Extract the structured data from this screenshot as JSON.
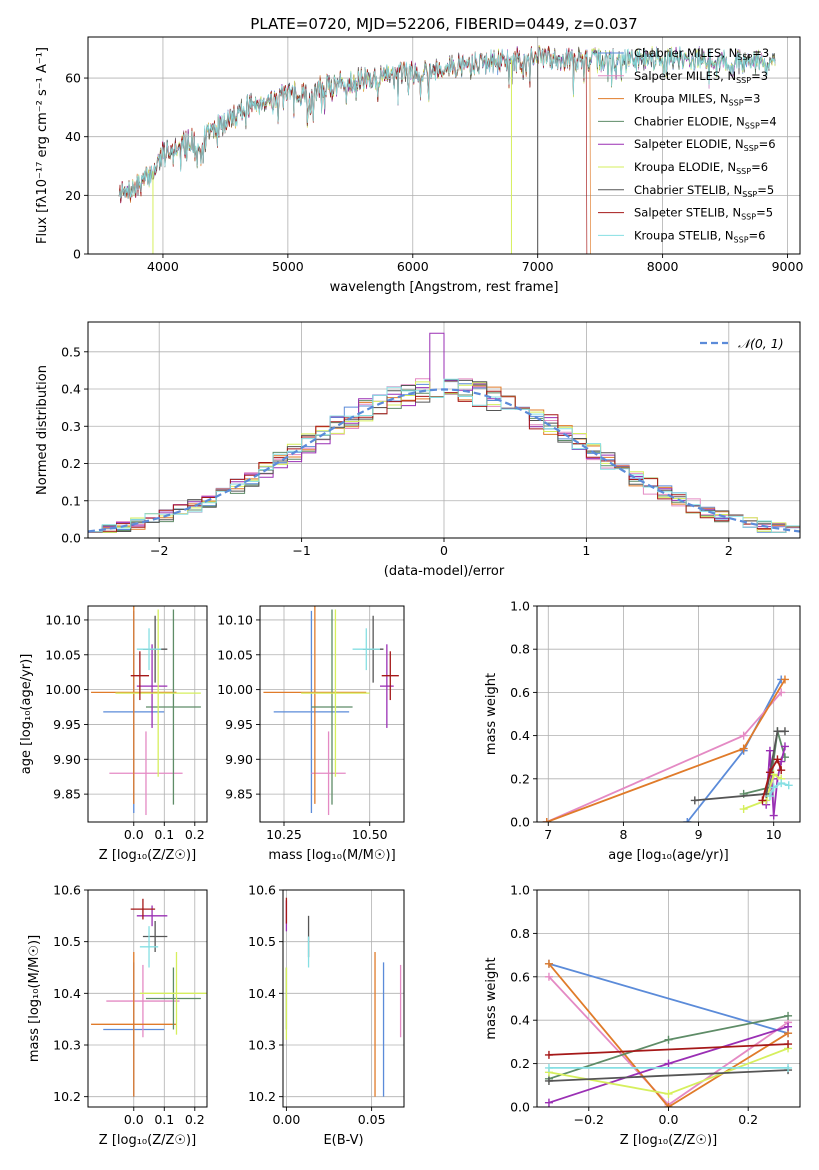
{
  "figure": {
    "title": "PLATE=0720, MJD=52206, FIBERID=0449, z=0.037"
  },
  "colors": {
    "Chabrier MILES": "#5b8bd9",
    "Salpeter MILES": "#e48ac4",
    "Kroupa MILES": "#e07b2a",
    "Chabrier ELODIE": "#5e8c67",
    "Salpeter ELODIE": "#9a2fb4",
    "Kroupa ELODIE": "#d6ef5d",
    "Chabrier STELIB": "#555555",
    "Salpeter STELIB": "#a51818",
    "Kroupa STELIB": "#86dfe3",
    "normal": "#5b8bd9"
  },
  "chart_data": [
    {
      "id": "spectrum",
      "type": "line",
      "xlabel": "wavelength [Angstrom, rest frame]",
      "ylabel": "Flux [fλ10⁻¹⁷ erg cm⁻² s⁻¹ A⁻¹]",
      "xlim": [
        3400,
        9100
      ],
      "ylim": [
        0,
        74
      ],
      "xticks": [
        4000,
        5000,
        6000,
        7000,
        8000,
        9000
      ],
      "yticks": [
        0,
        20,
        40,
        60
      ],
      "legend_position": "right",
      "series": [
        {
          "name": "Chabrier MILES, N_SSP=3"
        },
        {
          "name": "Salpeter MILES, N_SSP=3"
        },
        {
          "name": "Kroupa MILES, N_SSP=3"
        },
        {
          "name": "Chabrier ELODIE, N_SSP=4"
        },
        {
          "name": "Salpeter ELODIE, N_SSP=6"
        },
        {
          "name": "Kroupa ELODIE, N_SSP=6"
        },
        {
          "name": "Chabrier STELIB, N_SSP=5"
        },
        {
          "name": "Salpeter STELIB, N_SSP=5"
        },
        {
          "name": "Kroupa STELIB, N_SSP=6"
        }
      ],
      "continuum": [
        [
          3650,
          22
        ],
        [
          3700,
          20
        ],
        [
          3800,
          23
        ],
        [
          3900,
          27
        ],
        [
          3950,
          30
        ],
        [
          4000,
          35
        ],
        [
          4100,
          37
        ],
        [
          4300,
          40
        ],
        [
          4500,
          45
        ],
        [
          4700,
          51
        ],
        [
          5000,
          54
        ],
        [
          5500,
          59
        ],
        [
          6000,
          62
        ],
        [
          6500,
          65
        ],
        [
          7000,
          67
        ],
        [
          7500,
          66
        ],
        [
          8000,
          67
        ],
        [
          8500,
          66
        ],
        [
          8900,
          65
        ]
      ],
      "dropouts": [
        {
          "series": "Kroupa MILES",
          "x_from": 7420
        },
        {
          "series": "Salpeter STELIB",
          "x_from": 7390
        }
      ],
      "spikes_down": [
        3920,
        6790,
        7000
      ]
    },
    {
      "id": "residuals",
      "type": "histogram",
      "xlabel": "(data-model)/error",
      "ylabel": "Normed distribution",
      "xlim": [
        -2.5,
        2.5
      ],
      "ylim": [
        0,
        0.58
      ],
      "xticks": [
        -2,
        -1,
        0,
        1,
        2
      ],
      "yticks": [
        0.0,
        0.1,
        0.2,
        0.3,
        0.4,
        0.5
      ],
      "legend_position": "upper right",
      "reference_curve": {
        "name": "𝒩(0, 1)",
        "mean": 0,
        "sigma": 1
      },
      "bin_width": 0.1
    },
    {
      "id": "age_vs_Z",
      "type": "errorbar",
      "xlabel": "Z [log₁₀(Z/Z☉)]",
      "ylabel": "age  [log₁₀(age/yr)]",
      "xlim": [
        -0.15,
        0.24
      ],
      "ylim": [
        9.81,
        10.12
      ],
      "xticks": [
        0.0,
        0.1,
        0.2
      ],
      "yticks": [
        9.85,
        9.9,
        9.95,
        10.0,
        10.05,
        10.1
      ],
      "points": [
        {
          "series": "Chabrier MILES",
          "x": 0.0,
          "xerr": 0.1,
          "y": 9.968,
          "yerr": 0.145
        },
        {
          "series": "Salpeter MILES",
          "x": 0.04,
          "xerr": 0.12,
          "y": 9.88,
          "yerr": 0.06
        },
        {
          "series": "Kroupa MILES",
          "x": 0.0,
          "xerr": 0.14,
          "y": 9.996,
          "yerr": 0.16
        },
        {
          "series": "Chabrier ELODIE",
          "x": 0.13,
          "xerr": 0.09,
          "y": 9.975,
          "yerr": 0.14
        },
        {
          "series": "Salpeter ELODIE",
          "x": 0.06,
          "xerr": 0.05,
          "y": 10.005,
          "yerr": 0.06
        },
        {
          "series": "Kroupa ELODIE",
          "x": 0.08,
          "xerr": 0.14,
          "y": 9.995,
          "yerr": 0.12
        },
        {
          "series": "Chabrier STELIB",
          "x": 0.07,
          "xerr": 0.04,
          "y": 10.058,
          "yerr": 0.048
        },
        {
          "series": "Salpeter STELIB",
          "x": 0.02,
          "xerr": 0.03,
          "y": 10.02,
          "yerr": 0.035
        },
        {
          "series": "Kroupa STELIB",
          "x": 0.05,
          "xerr": 0.04,
          "y": 10.058,
          "yerr": 0.03
        }
      ]
    },
    {
      "id": "age_vs_mass",
      "type": "errorbar",
      "xlabel": "mass [log₁₀(M/M☉)]",
      "xlim": [
        10.18,
        10.6
      ],
      "ylim": [
        9.81,
        10.12
      ],
      "xticks": [
        10.25,
        10.5
      ],
      "yticks": [
        9.85,
        9.9,
        9.95,
        10.0,
        10.05,
        10.1
      ],
      "points": [
        {
          "series": "Chabrier MILES",
          "x": 10.33,
          "xerr": 0.11,
          "y": 9.968,
          "yerr": 0.145
        },
        {
          "series": "Salpeter MILES",
          "x": 10.38,
          "xerr": 0.05,
          "y": 9.88,
          "yerr": 0.06
        },
        {
          "series": "Kroupa MILES",
          "x": 10.34,
          "xerr": 0.15,
          "y": 9.996,
          "yerr": 0.16
        },
        {
          "series": "Chabrier ELODIE",
          "x": 10.39,
          "xerr": 0.06,
          "y": 9.975,
          "yerr": 0.14
        },
        {
          "series": "Salpeter ELODIE",
          "x": 10.55,
          "xerr": 0.02,
          "y": 10.005,
          "yerr": 0.06
        },
        {
          "series": "Kroupa ELODIE",
          "x": 10.4,
          "xerr": 0.1,
          "y": 9.995,
          "yerr": 0.12
        },
        {
          "series": "Chabrier STELIB",
          "x": 10.51,
          "xerr": 0.03,
          "y": 10.058,
          "yerr": 0.048
        },
        {
          "series": "Salpeter STELIB",
          "x": 10.56,
          "xerr": 0.025,
          "y": 10.02,
          "yerr": 0.035
        },
        {
          "series": "Kroupa STELIB",
          "x": 10.49,
          "xerr": 0.04,
          "y": 10.058,
          "yerr": 0.03
        }
      ]
    },
    {
      "id": "weight_vs_age",
      "type": "line",
      "xlabel": "age  [log₁₀(age/yr)]",
      "ylabel": "mass weight",
      "xlim": [
        6.85,
        10.35
      ],
      "ylim": [
        0,
        1.0
      ],
      "xticks": [
        7,
        8,
        9,
        10
      ],
      "yticks": [
        0.0,
        0.2,
        0.4,
        0.6,
        0.8,
        1.0
      ],
      "series": [
        {
          "series": "Chabrier MILES",
          "x": [
            8.85,
            9.6,
            10.1
          ],
          "y": [
            0.0,
            0.33,
            0.66
          ]
        },
        {
          "series": "Salpeter MILES",
          "x": [
            6.98,
            9.6,
            10.1
          ],
          "y": [
            0.0,
            0.4,
            0.6
          ]
        },
        {
          "series": "Kroupa MILES",
          "x": [
            6.98,
            9.6,
            10.15
          ],
          "y": [
            0.0,
            0.34,
            0.66
          ]
        },
        {
          "series": "Chabrier ELODIE",
          "x": [
            9.6,
            9.95,
            10.05,
            10.15
          ],
          "y": [
            0.13,
            0.16,
            0.42,
            0.3
          ]
        },
        {
          "series": "Salpeter ELODIE",
          "x": [
            9.9,
            9.95,
            10.0,
            10.05,
            10.1,
            10.15
          ],
          "y": [
            0.08,
            0.33,
            0.03,
            0.2,
            0.28,
            0.35
          ]
        },
        {
          "series": "Kroupa ELODIE",
          "x": [
            9.6,
            9.9,
            10.0,
            10.1
          ],
          "y": [
            0.06,
            0.1,
            0.22,
            0.2
          ]
        },
        {
          "series": "Chabrier STELIB",
          "x": [
            8.95,
            9.9,
            10.05,
            10.15
          ],
          "y": [
            0.1,
            0.13,
            0.42,
            0.42
          ]
        },
        {
          "series": "Salpeter STELIB",
          "x": [
            9.85,
            9.95,
            10.05,
            10.1
          ],
          "y": [
            0.1,
            0.23,
            0.29,
            0.24
          ]
        },
        {
          "series": "Kroupa STELIB",
          "x": [
            9.95,
            10.0,
            10.1,
            10.2
          ],
          "y": [
            0.12,
            0.16,
            0.18,
            0.17
          ]
        }
      ]
    },
    {
      "id": "mass_vs_Z",
      "type": "errorbar",
      "xlabel": "Z [log₁₀(Z/Z☉)]",
      "ylabel": "mass [log₁₀(M/M☉)]",
      "xlim": [
        -0.15,
        0.24
      ],
      "ylim": [
        10.18,
        10.6
      ],
      "xticks": [
        0.0,
        0.1,
        0.2
      ],
      "yticks": [
        10.2,
        10.3,
        10.4,
        10.5,
        10.6
      ],
      "points": [
        {
          "series": "Chabrier MILES",
          "x": 0.0,
          "xerr": 0.1,
          "y": 10.33,
          "yerr": 0.13
        },
        {
          "series": "Salpeter MILES",
          "x": 0.03,
          "xerr": 0.12,
          "y": 10.385,
          "yerr": 0.07
        },
        {
          "series": "Kroupa MILES",
          "x": 0.0,
          "xerr": 0.14,
          "y": 10.34,
          "yerr": 0.14
        },
        {
          "series": "Chabrier ELODIE",
          "x": 0.13,
          "xerr": 0.09,
          "y": 10.39,
          "yerr": 0.06
        },
        {
          "series": "Salpeter ELODIE",
          "x": 0.06,
          "xerr": 0.05,
          "y": 10.55,
          "yerr": 0.02
        },
        {
          "series": "Kroupa ELODIE",
          "x": 0.14,
          "xerr": 0.12,
          "y": 10.4,
          "yerr": 0.08
        },
        {
          "series": "Chabrier STELIB",
          "x": 0.07,
          "xerr": 0.04,
          "y": 10.51,
          "yerr": 0.03
        },
        {
          "series": "Salpeter STELIB",
          "x": 0.03,
          "xerr": 0.04,
          "y": 10.563,
          "yerr": 0.02
        },
        {
          "series": "Kroupa STELIB",
          "x": 0.05,
          "xerr": 0.03,
          "y": 10.49,
          "yerr": 0.04
        }
      ]
    },
    {
      "id": "mass_vs_ebv",
      "type": "errorbar",
      "xlabel": "E(B-V)",
      "xlim": [
        -0.002,
        0.069
      ],
      "ylim": [
        10.18,
        10.6
      ],
      "xticks": [
        0.0,
        0.05
      ],
      "yticks": [
        10.2,
        10.3,
        10.4,
        10.5,
        10.6
      ],
      "points": [
        {
          "series": "Chabrier MILES",
          "x": 0.057,
          "y": 10.33,
          "yerr": 0.13
        },
        {
          "series": "Salpeter MILES",
          "x": 0.067,
          "y": 10.385,
          "yerr": 0.07
        },
        {
          "series": "Kroupa MILES",
          "x": 0.052,
          "y": 10.34,
          "yerr": 0.14
        },
        {
          "series": "Chabrier ELODIE",
          "x": 0.0,
          "y": 10.39,
          "yerr": 0.06
        },
        {
          "series": "Salpeter ELODIE",
          "x": 0.0,
          "y": 10.55,
          "yerr": 0.03
        },
        {
          "series": "Kroupa ELODIE",
          "x": 0.0,
          "y": 10.38,
          "yerr": 0.07
        },
        {
          "series": "Chabrier STELIB",
          "x": 0.013,
          "y": 10.51,
          "yerr": 0.04
        },
        {
          "series": "Salpeter STELIB",
          "x": 0.0,
          "y": 10.56,
          "yerr": 0.025
        },
        {
          "series": "Kroupa STELIB",
          "x": 0.013,
          "y": 10.48,
          "yerr": 0.03
        }
      ]
    },
    {
      "id": "weight_vs_Z",
      "type": "line",
      "xlabel": "Z [log₁₀(Z/Z☉)]",
      "ylabel": "mass weight",
      "xlim": [
        -0.33,
        0.33
      ],
      "ylim": [
        0,
        1.0
      ],
      "xticks": [
        -0.2,
        0.0,
        0.2
      ],
      "yticks": [
        0.0,
        0.2,
        0.4,
        0.6,
        0.8,
        1.0
      ],
      "series": [
        {
          "series": "Chabrier MILES",
          "x": [
            -0.3,
            0.3
          ],
          "y": [
            0.66,
            0.34
          ]
        },
        {
          "series": "Salpeter MILES",
          "x": [
            -0.3,
            0.0,
            0.3
          ],
          "y": [
            0.6,
            0.01,
            0.39
          ]
        },
        {
          "series": "Kroupa MILES",
          "x": [
            -0.3,
            0.0,
            0.3
          ],
          "y": [
            0.66,
            0.0,
            0.34
          ]
        },
        {
          "series": "Chabrier ELODIE",
          "x": [
            -0.3,
            0.0,
            0.3
          ],
          "y": [
            0.13,
            0.31,
            0.42
          ]
        },
        {
          "series": "Salpeter ELODIE",
          "x": [
            -0.3,
            0.0,
            0.3
          ],
          "y": [
            0.02,
            0.2,
            0.37
          ]
        },
        {
          "series": "Kroupa ELODIE",
          "x": [
            -0.3,
            0.0,
            0.3
          ],
          "y": [
            0.16,
            0.06,
            0.27
          ]
        },
        {
          "series": "Chabrier STELIB",
          "x": [
            -0.3,
            0.3
          ],
          "y": [
            0.12,
            0.17
          ]
        },
        {
          "series": "Salpeter STELIB",
          "x": [
            -0.3,
            0.3
          ],
          "y": [
            0.24,
            0.29
          ]
        },
        {
          "series": "Kroupa STELIB",
          "x": [
            -0.3,
            0.3
          ],
          "y": [
            0.18,
            0.18
          ]
        }
      ]
    }
  ]
}
